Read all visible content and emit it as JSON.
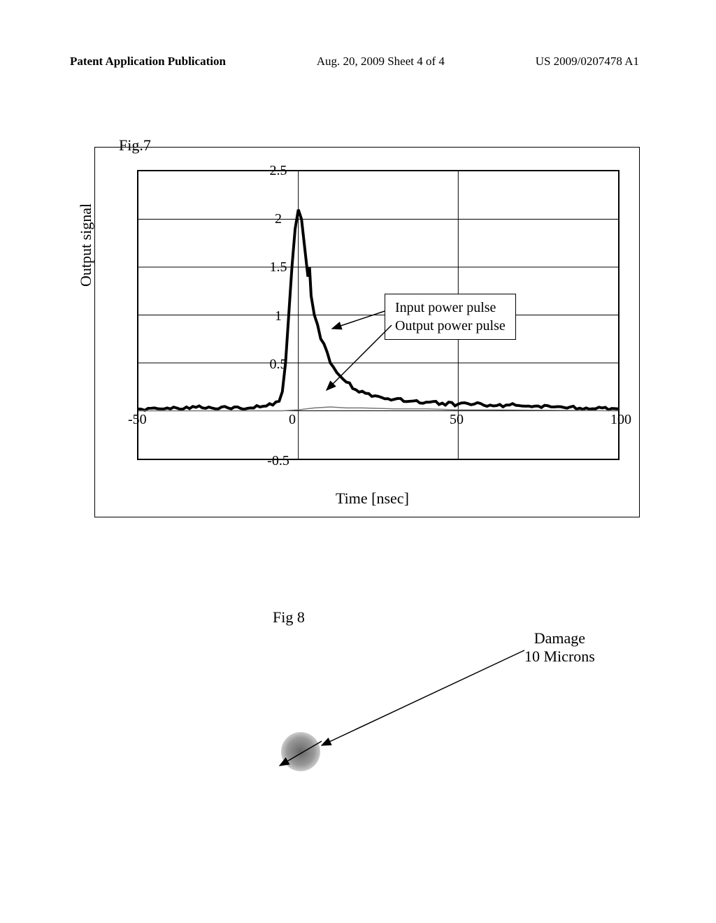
{
  "header": {
    "left": "Patent Application Publication",
    "center": "Aug. 20, 2009  Sheet 4 of 4",
    "right": "US 2009/0207478 A1"
  },
  "fig7": {
    "label": "Fig.7",
    "ylabel": "Output signal",
    "xlabel": "Time [nsec]",
    "yticks": [
      -0.5,
      0,
      0.5,
      1,
      1.5,
      2,
      2.5
    ],
    "xticks": [
      -50,
      0,
      50,
      100
    ],
    "ylim": [
      -0.5,
      2.5
    ],
    "xlim": [
      -50,
      100
    ],
    "legend": [
      "Input power pulse",
      "Output power pulse"
    ],
    "pulse_color": "#000000",
    "grid_color": "#000000",
    "series": {
      "input": [
        [
          -50,
          0.02
        ],
        [
          -45,
          0.03
        ],
        [
          -40,
          0.02
        ],
        [
          -35,
          0.04
        ],
        [
          -30,
          0.03
        ],
        [
          -25,
          0.02
        ],
        [
          -20,
          0.04
        ],
        [
          -15,
          0.03
        ],
        [
          -12,
          0.04
        ],
        [
          -10,
          0.05
        ],
        [
          -8,
          0.06
        ],
        [
          -6,
          0.1
        ],
        [
          -5,
          0.2
        ],
        [
          -4,
          0.5
        ],
        [
          -3,
          1.0
        ],
        [
          -2,
          1.5
        ],
        [
          -1,
          1.9
        ],
        [
          0,
          2.1
        ],
        [
          1,
          2.0
        ],
        [
          2,
          1.7
        ],
        [
          3,
          1.4
        ],
        [
          3.5,
          1.5
        ],
        [
          4,
          1.2
        ],
        [
          5,
          1.0
        ],
        [
          6,
          0.9
        ],
        [
          7,
          0.75
        ],
        [
          8,
          0.7
        ],
        [
          10,
          0.5
        ],
        [
          12,
          0.4
        ],
        [
          15,
          0.3
        ],
        [
          18,
          0.22
        ],
        [
          22,
          0.18
        ],
        [
          26,
          0.14
        ],
        [
          30,
          0.12
        ],
        [
          35,
          0.1
        ],
        [
          40,
          0.09
        ],
        [
          45,
          0.08
        ],
        [
          50,
          0.07
        ],
        [
          55,
          0.07
        ],
        [
          60,
          0.06
        ],
        [
          65,
          0.06
        ],
        [
          70,
          0.05
        ],
        [
          75,
          0.05
        ],
        [
          80,
          0.04
        ],
        [
          85,
          0.04
        ],
        [
          90,
          0.03
        ],
        [
          95,
          0.03
        ],
        [
          100,
          0.02
        ]
      ],
      "output": [
        [
          -50,
          0.0
        ],
        [
          -30,
          0.0
        ],
        [
          -10,
          0.0
        ],
        [
          -5,
          0.0
        ],
        [
          0,
          0.01
        ],
        [
          5,
          0.03
        ],
        [
          10,
          0.04
        ],
        [
          15,
          0.03
        ],
        [
          20,
          0.03
        ],
        [
          30,
          0.02
        ],
        [
          40,
          0.02
        ],
        [
          50,
          0.01
        ],
        [
          60,
          0.01
        ],
        [
          100,
          0.0
        ]
      ]
    }
  },
  "fig8": {
    "label": "Fig 8",
    "annotation": "Damage\n10 Microns",
    "spot_color": "#888888"
  }
}
